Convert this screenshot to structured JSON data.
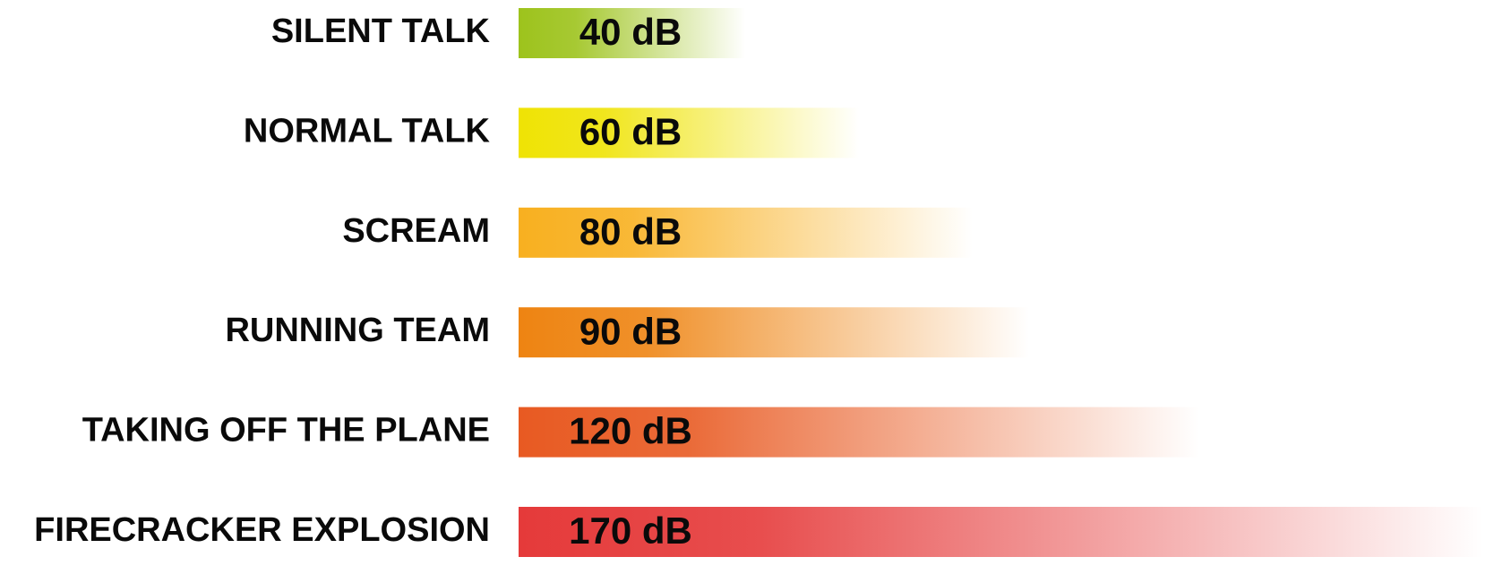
{
  "chart_data": {
    "type": "bar",
    "orientation": "horizontal",
    "categories": [
      "SILENT TALK",
      "NORMAL TALK",
      "SCREAM",
      "RUNNING TEAM",
      "TAKING OFF THE PLANE",
      "FIRECRACKER EXPLOSION"
    ],
    "values": [
      40,
      60,
      80,
      90,
      120,
      170
    ],
    "value_labels": [
      "40 dB",
      "60 dB",
      "80 dB",
      "90 dB",
      "120 dB",
      "170 dB"
    ],
    "colors": [
      "#9dc31c",
      "#efe304",
      "#f8b020",
      "#ee8412",
      "#e85a22",
      "#e53a3a"
    ]
  }
}
